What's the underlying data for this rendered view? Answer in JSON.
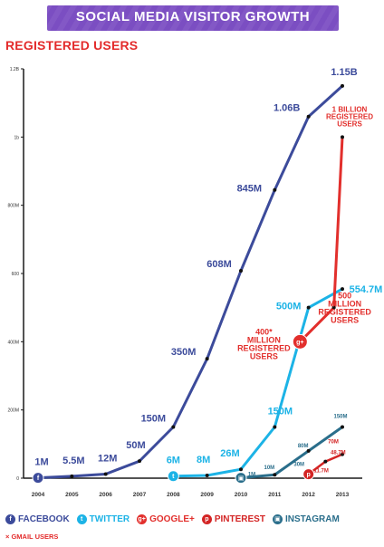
{
  "banner": {
    "title": "SOCIAL MEDIA VISITOR GROWTH"
  },
  "subtitle": "REGISTERED USERS",
  "footnote": "× GMAIL USERS",
  "colors": {
    "facebook": "#3c4b9b",
    "twitter": "#1cb3e6",
    "googleplus": "#e22f2c",
    "pinterest": "#d32424",
    "instagram": "#2a6e8b",
    "gmail": "#e32b2b",
    "axis": "#1a1a1a",
    "banner": "#7b4ec2"
  },
  "legend": [
    {
      "name": "FACEBOOK",
      "icon": "facebook-icon",
      "color": "#3c4b9b",
      "glyph": "f"
    },
    {
      "name": "TWITTER",
      "icon": "twitter-icon",
      "color": "#1cb3e6",
      "glyph": "t"
    },
    {
      "name": "GOOGLE+",
      "icon": "googleplus-icon",
      "color": "#e22f2c",
      "glyph": "g+"
    },
    {
      "name": "PINTEREST",
      "icon": "pinterest-icon",
      "color": "#d32424",
      "glyph": "p"
    },
    {
      "name": "INSTAGRAM",
      "icon": "instagram-icon",
      "color": "#2a6e8b",
      "glyph": "▣"
    }
  ],
  "chart_data": {
    "type": "line",
    "title": "SOCIAL MEDIA VISITOR GROWTH",
    "subtitle": "REGISTERED USERS",
    "xlabel": "",
    "ylabel": "",
    "x_ticks": [
      "2004",
      "2005",
      "2006",
      "2007",
      "2008",
      "2009",
      "2010",
      "2011",
      "2012",
      "2013"
    ],
    "y_ticks": [
      {
        "value": 0,
        "label": "0"
      },
      {
        "value": 200,
        "label": "200M"
      },
      {
        "value": 400,
        "label": "400M"
      },
      {
        "value": 600,
        "label": "600"
      },
      {
        "value": 800,
        "label": "800M"
      },
      {
        "value": 1000,
        "label": "1b"
      },
      {
        "value": 1200,
        "label": "1.2B"
      }
    ],
    "xlim": [
      2004,
      2013
    ],
    "ylim": [
      0,
      1200
    ],
    "grid": false,
    "legend_position": "bottom",
    "series": [
      {
        "name": "FACEBOOK",
        "color": "#3c4b9b",
        "x": [
          2004,
          2005,
          2006,
          2007,
          2008,
          2009,
          2010,
          2011,
          2012,
          2013
        ],
        "y": [
          1,
          5.5,
          12,
          50,
          150,
          350,
          608,
          845,
          1060,
          1150
        ],
        "labels": [
          "1M",
          "5.5M",
          "12M",
          "50M",
          "150M",
          "350M",
          "608M",
          "845M",
          "1.06B",
          "1.15B"
        ]
      },
      {
        "name": "TWITTER",
        "color": "#1cb3e6",
        "x": [
          2008,
          2009,
          2010,
          2011,
          2012,
          2013
        ],
        "y": [
          6,
          8,
          26,
          150,
          500,
          554.7
        ],
        "labels": [
          "6M",
          "8M",
          "26M",
          "150M",
          "500M",
          "554.7M"
        ]
      },
      {
        "name": "GOOGLE+",
        "color": "#e22f2c",
        "x": [
          2011.75,
          2012.75,
          2013
        ],
        "y": [
          400,
          500,
          1000
        ],
        "labels": [
          "400*\nMILLION\nREGISTERED\nUSERS",
          "500\nMILLION\nREGISTERED\nUSERS",
          "1 BILLION\nREGISTERED\nUSERS"
        ]
      },
      {
        "name": "INSTAGRAM",
        "color": "#2a6e8b",
        "x": [
          2010,
          2011,
          2012,
          2013
        ],
        "y": [
          1,
          10,
          80,
          150
        ],
        "labels": [
          "1M",
          "10M",
          "80M",
          "150M"
        ]
      },
      {
        "name": "PINTEREST",
        "color": "#d32424",
        "x": [
          2012,
          2012.5,
          2013
        ],
        "y": [
          11.7,
          48.7,
          70
        ],
        "labels": [
          "11.7M",
          "48.7M",
          "70M"
        ]
      }
    ],
    "annotations": [
      "30M"
    ]
  }
}
